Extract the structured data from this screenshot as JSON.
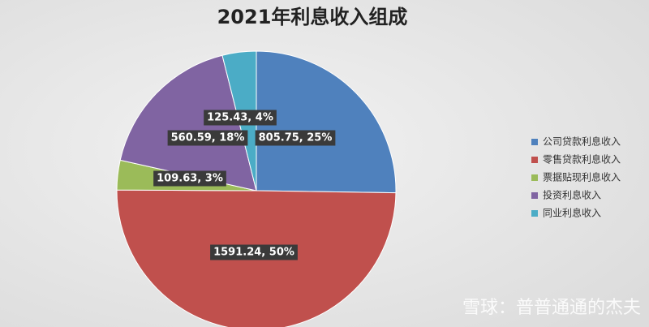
{
  "chart_data": {
    "type": "pie",
    "title": "2021年利息收入组成",
    "categories": [
      "公司贷款利息收入",
      "零售贷款利息收入",
      "票据贴现利息收入",
      "投资利息收入",
      "同业利息收入"
    ],
    "values": [
      805.75,
      1591.24,
      109.63,
      560.59,
      125.43
    ],
    "value_labels": [
      "805.75, 25%",
      "1591.24, 50%",
      "109.63, 3%",
      "560.59, 18%",
      "125.43, 4%"
    ],
    "colors": [
      "#4f81bd",
      "#c0504d",
      "#9bbb59",
      "#8064a2",
      "#4bacc6"
    ],
    "legend": "right"
  },
  "watermark": "雪球：普普通通的杰夫"
}
